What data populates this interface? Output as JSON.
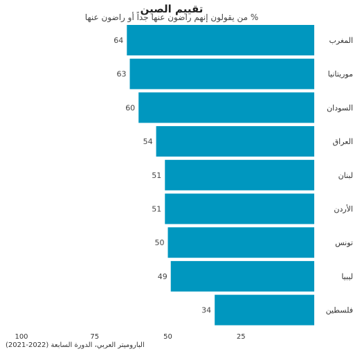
{
  "chart_data": {
    "type": "bar",
    "orientation": "horizontal",
    "title": "تقييم الصين",
    "subtitle": "% من يقولون إنهم راضون عنها جداً أو راضون عنها",
    "categories": [
      "المغرب",
      "موريتانيا",
      "السودان",
      "العراق",
      "لبنان",
      "الأردن",
      "تونس",
      "ليبيا",
      "فلسطين"
    ],
    "values": [
      64,
      63,
      60,
      54,
      51,
      51,
      50,
      49,
      34
    ],
    "xlim": [
      0,
      100
    ],
    "x_direction": "right-to-left",
    "x_ticks": [
      100,
      75,
      50,
      25
    ],
    "grid": false,
    "bar_color": "#0097bf",
    "source": "الباروميتر العربي، الدورة السابعة (2022-2021)"
  }
}
